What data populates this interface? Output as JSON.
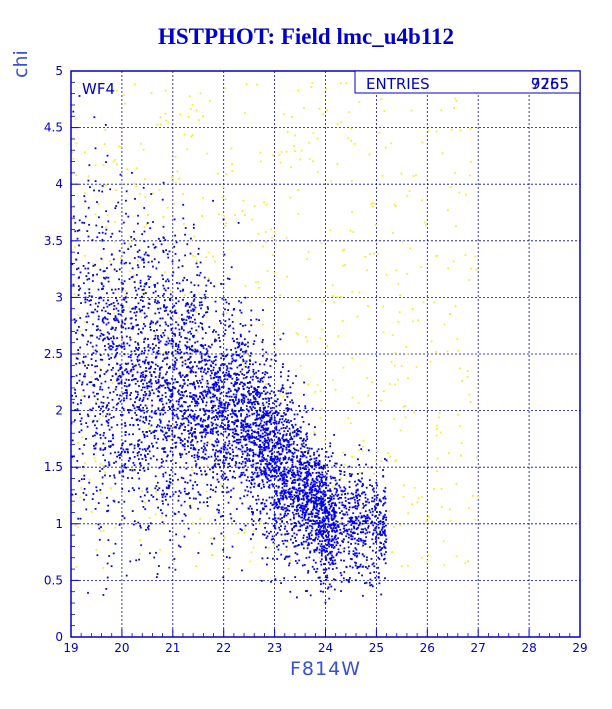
{
  "title": "HSTPHOT: Field lmc_u4b112",
  "panel_label": "WF4",
  "stats": {
    "label": "ENTRIES",
    "value": "9265",
    "value_overlap": "7755"
  },
  "colors": {
    "axes": "#0000cc",
    "primary_points": "#0000ee",
    "secondary_points": "#f0f030",
    "title": "#0000cc",
    "axis_label": "#3a4fd1"
  },
  "chart_data": {
    "type": "scatter",
    "title": "HSTPHOT: Field lmc_u4b112",
    "xlabel": "F814W",
    "ylabel": "chi",
    "xlim": [
      19,
      29
    ],
    "ylim": [
      0,
      5
    ],
    "x_ticks": [
      19,
      20,
      21,
      22,
      23,
      24,
      25,
      26,
      27,
      28,
      29
    ],
    "y_ticks": [
      0,
      0.5,
      1,
      1.5,
      2,
      2.5,
      3,
      3.5,
      4,
      4.5,
      5
    ],
    "grid": true,
    "series": [
      {
        "color": "#0000ee",
        "points_shown": 5200,
        "density_ridge": [
          [
            19.5,
            2.5
          ],
          [
            20.5,
            2.3
          ],
          [
            21.5,
            2.15
          ],
          [
            22.0,
            2.05
          ],
          [
            22.5,
            1.9
          ],
          [
            23.0,
            1.6
          ],
          [
            23.5,
            1.35
          ],
          [
            24.0,
            1.05
          ],
          [
            24.5,
            1.0
          ]
        ],
        "x_range": [
          19.0,
          25.2
        ],
        "y_range": [
          0.3,
          4.9
        ]
      },
      {
        "color": "#f0f030",
        "points_shown": 700,
        "x_range": [
          19.0,
          27.0
        ],
        "y_range": [
          0.6,
          4.9
        ]
      }
    ]
  }
}
